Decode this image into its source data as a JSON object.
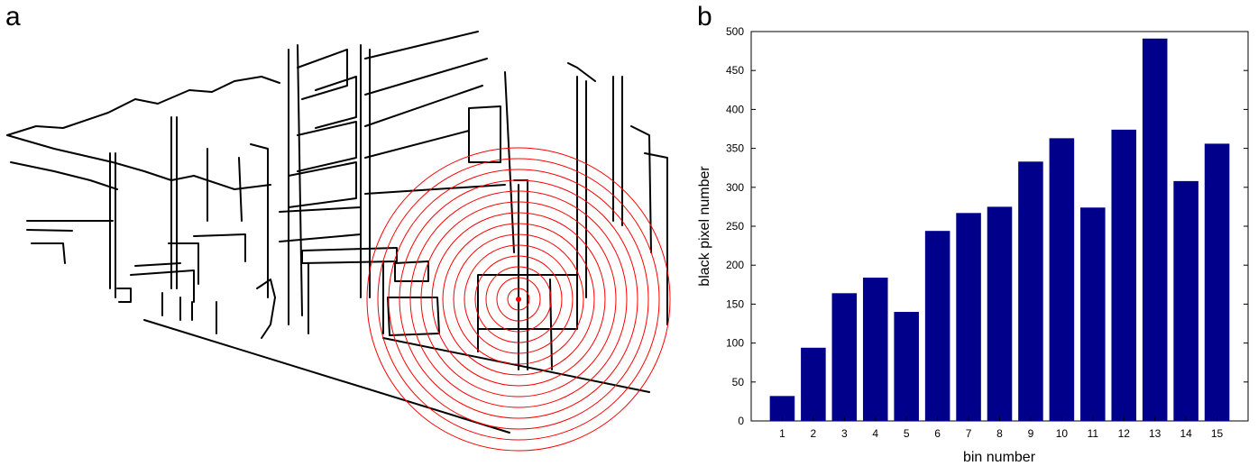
{
  "panels": {
    "left_letter": "a",
    "right_letter": "b"
  },
  "sketch": {
    "description_icon": "street-scene-line-drawing",
    "circle_color": "#ff0000",
    "line_color": "#000000",
    "ring_count": 14
  },
  "chart_data": {
    "type": "bar",
    "categories": [
      "1",
      "2",
      "3",
      "4",
      "5",
      "6",
      "7",
      "8",
      "9",
      "10",
      "11",
      "12",
      "13",
      "14",
      "15"
    ],
    "values": [
      32,
      94,
      164,
      184,
      140,
      244,
      267,
      275,
      333,
      363,
      274,
      374,
      491,
      308,
      356
    ],
    "xlabel": "bin number",
    "ylabel": "black pixel number",
    "ylim": [
      0,
      500
    ],
    "yticks": [
      "0",
      "50",
      "100",
      "150",
      "200",
      "250",
      "300",
      "350",
      "400",
      "450",
      "500"
    ],
    "bar_color": "#00008b",
    "grid": false
  }
}
